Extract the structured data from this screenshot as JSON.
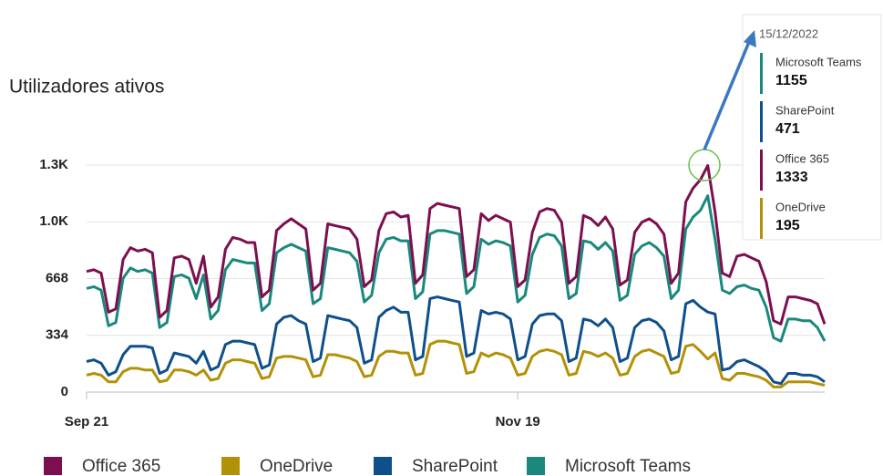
{
  "chart_data": {
    "type": "line",
    "title": "Utilizadores ativos",
    "x_start": "2022-09-21",
    "x_step_days": 1,
    "xlim": [
      "2022-09-21",
      "2022-12-31"
    ],
    "xticks": [
      {
        "value": "2022-09-21",
        "label": "Sep 21"
      },
      {
        "value": "2022-11-19",
        "label": "Nov 19"
      }
    ],
    "ylim": [
      0,
      1336
    ],
    "yticks": [
      0,
      334,
      668,
      {
        "value": 1002,
        "label": "1.0K"
      },
      {
        "value": 1336,
        "label": "1.3K"
      }
    ],
    "grid": true,
    "legend": "bottom",
    "series": [
      {
        "name": "Office 365",
        "color": "#7d0f4f",
        "values": [
          710,
          720,
          700,
          470,
          490,
          780,
          850,
          830,
          840,
          820,
          440,
          480,
          790,
          800,
          780,
          640,
          800,
          500,
          560,
          840,
          910,
          900,
          880,
          880,
          560,
          600,
          950,
          990,
          1020,
          990,
          960,
          600,
          640,
          990,
          980,
          970,
          960,
          900,
          620,
          660,
          950,
          1050,
          1060,
          1030,
          1040,
          640,
          690,
          1080,
          1110,
          1100,
          1090,
          1080,
          680,
          720,
          1050,
          1010,
          1040,
          1020,
          1000,
          620,
          660,
          940,
          1060,
          1080,
          1070,
          1000,
          640,
          680,
          1040,
          1020,
          980,
          1030,
          960,
          630,
          660,
          940,
          1000,
          1020,
          990,
          930,
          640,
          700,
          1120,
          1200,
          1250,
          1333,
          1060,
          700,
          680,
          800,
          810,
          790,
          770,
          650,
          420,
          400,
          560,
          560,
          550,
          540,
          520,
          400
        ]
      },
      {
        "name": "OneDrive",
        "color": "#b39106",
        "values": [
          100,
          110,
          100,
          60,
          60,
          120,
          140,
          140,
          130,
          130,
          60,
          70,
          130,
          130,
          120,
          100,
          130,
          70,
          80,
          170,
          190,
          190,
          180,
          170,
          80,
          90,
          200,
          210,
          210,
          200,
          190,
          90,
          100,
          220,
          220,
          210,
          200,
          180,
          90,
          100,
          210,
          240,
          240,
          230,
          230,
          100,
          110,
          280,
          300,
          300,
          290,
          280,
          110,
          120,
          230,
          210,
          230,
          220,
          200,
          100,
          110,
          210,
          240,
          250,
          240,
          220,
          100,
          110,
          240,
          230,
          210,
          230,
          200,
          100,
          110,
          210,
          240,
          250,
          230,
          210,
          110,
          120,
          270,
          280,
          240,
          195,
          230,
          80,
          70,
          110,
          110,
          100,
          90,
          70,
          30,
          30,
          60,
          60,
          60,
          60,
          50,
          40
        ]
      },
      {
        "name": "SharePoint",
        "color": "#0e4f8c",
        "values": [
          180,
          190,
          170,
          100,
          120,
          220,
          270,
          270,
          270,
          260,
          110,
          130,
          230,
          220,
          210,
          170,
          240,
          130,
          150,
          280,
          300,
          300,
          290,
          280,
          140,
          160,
          400,
          440,
          450,
          420,
          400,
          180,
          200,
          450,
          440,
          430,
          420,
          380,
          170,
          190,
          440,
          480,
          500,
          470,
          470,
          190,
          210,
          550,
          560,
          550,
          540,
          530,
          210,
          230,
          480,
          460,
          470,
          460,
          430,
          190,
          210,
          400,
          450,
          460,
          460,
          420,
          180,
          200,
          430,
          420,
          390,
          430,
          380,
          180,
          200,
          380,
          420,
          430,
          410,
          360,
          190,
          210,
          520,
          540,
          500,
          471,
          460,
          130,
          140,
          180,
          190,
          170,
          150,
          120,
          60,
          50,
          110,
          110,
          100,
          100,
          90,
          60
        ]
      },
      {
        "name": "Microsoft Teams",
        "color": "#1a887c",
        "values": [
          610,
          620,
          600,
          390,
          410,
          670,
          730,
          710,
          720,
          700,
          380,
          410,
          680,
          690,
          670,
          550,
          690,
          430,
          480,
          720,
          780,
          770,
          760,
          760,
          480,
          520,
          820,
          850,
          870,
          850,
          830,
          520,
          550,
          850,
          840,
          830,
          820,
          770,
          530,
          570,
          820,
          900,
          910,
          890,
          890,
          550,
          590,
          930,
          950,
          950,
          940,
          930,
          580,
          620,
          900,
          870,
          890,
          880,
          860,
          530,
          570,
          810,
          910,
          930,
          920,
          860,
          550,
          580,
          890,
          880,
          840,
          880,
          830,
          540,
          570,
          810,
          860,
          880,
          850,
          800,
          550,
          600,
          960,
          1030,
          1070,
          1155,
          900,
          600,
          580,
          620,
          630,
          610,
          600,
          500,
          320,
          300,
          430,
          430,
          420,
          420,
          380,
          300
        ]
      }
    ],
    "tooltip": {
      "date": "15/12/2022",
      "index": 85
    }
  }
}
